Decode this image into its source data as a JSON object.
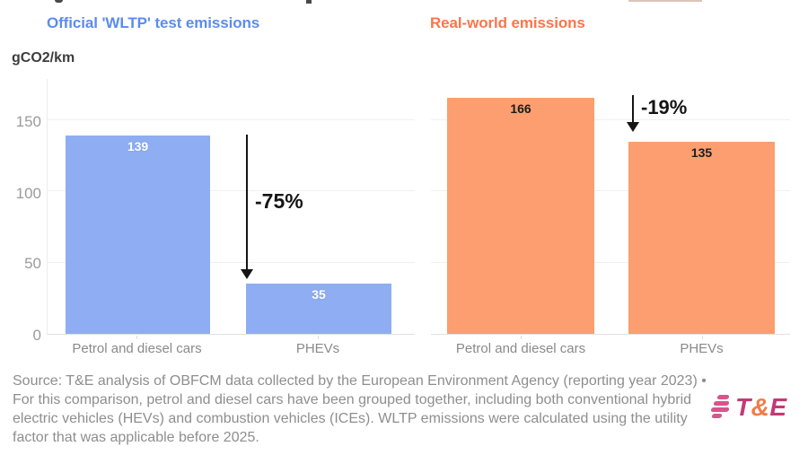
{
  "unit_label": "gCO2/km",
  "axis": {
    "display_ticks": [
      "150",
      "100",
      "50",
      "0"
    ]
  },
  "chart_data": [
    {
      "type": "bar",
      "title": "Official 'WLTP' test emissions",
      "title_color": "#5b8cee",
      "bar_color": "#8fadf2",
      "value_label_color": "#ffffff",
      "categories": [
        "Petrol and diesel cars",
        "PHEVs"
      ],
      "values": [
        139,
        35
      ],
      "annotation": "-75%",
      "ylabel": "gCO2/km",
      "ylim": [
        0,
        180
      ],
      "yticks": [
        0,
        50,
        100,
        150
      ],
      "grid": true,
      "legend": false
    },
    {
      "type": "bar",
      "title": "Real-world emissions",
      "title_color": "#f8774a",
      "bar_color": "#fc9e6f",
      "value_label_color": "#1c1c1c",
      "categories": [
        "Petrol and diesel cars",
        "PHEVs"
      ],
      "values": [
        166,
        135
      ],
      "annotation": "-19%",
      "ylabel": "gCO2/km",
      "ylim": [
        0,
        180
      ],
      "yticks": [
        0,
        50,
        100,
        150
      ],
      "grid": true,
      "legend": false
    }
  ],
  "footer": {
    "source_lines": [
      "Source: T&E analysis of OBFCM data collected by the European Environment Agency (reporting year 2023) •",
      "For this comparison, petrol and diesel cars have been grouped together, including both conventional hybrid",
      "electric vehicles (HEVs) and combustion vehicles (ICEs). WLTP emissions were calculated using the utility",
      "factor that was applicable before 2025."
    ],
    "logo": {
      "t": "T",
      "amp": "&",
      "e": "E"
    }
  }
}
